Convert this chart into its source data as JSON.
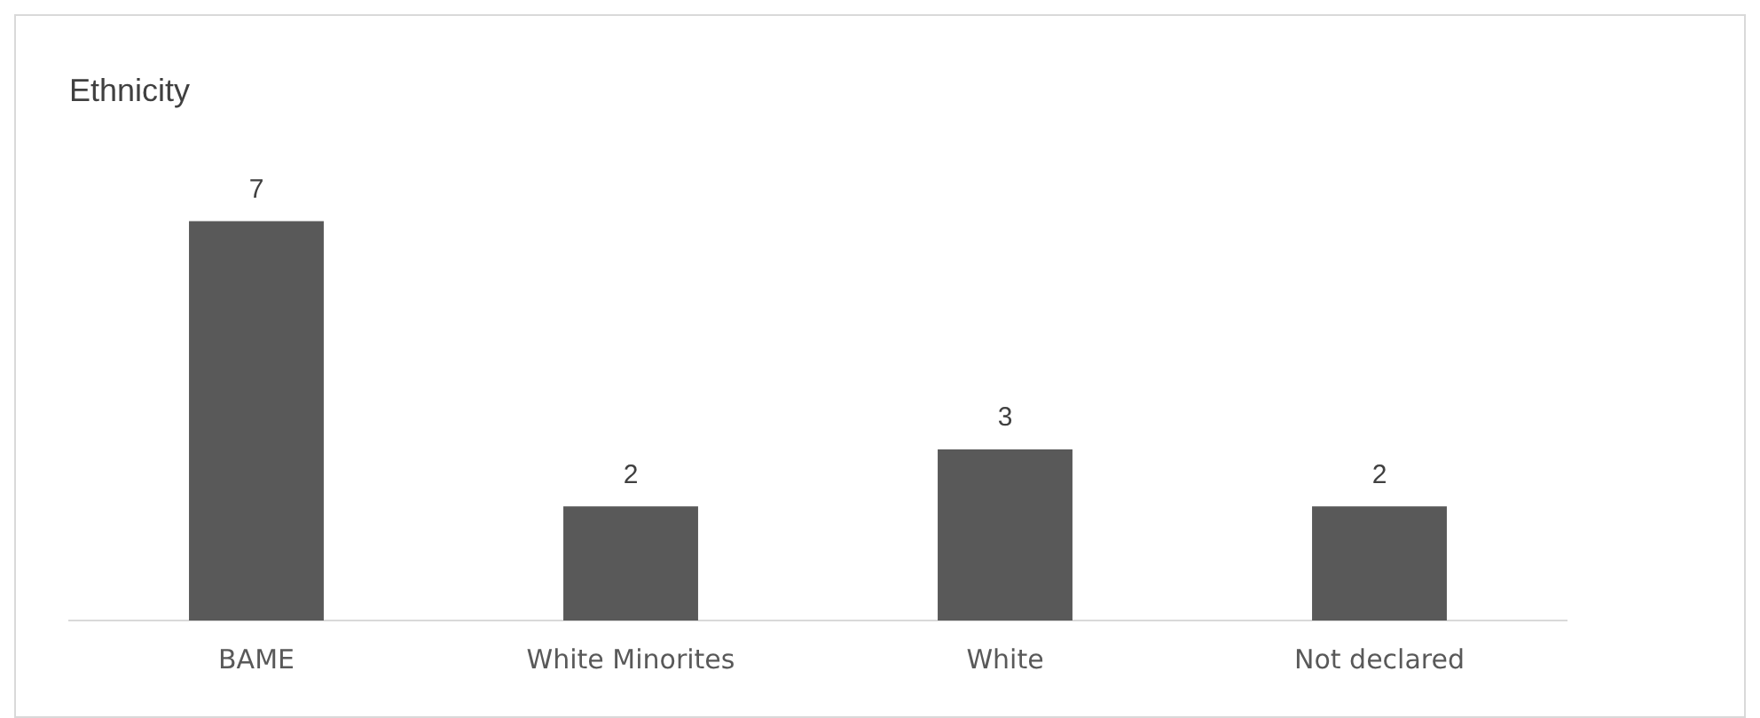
{
  "chart_data": {
    "type": "bar",
    "title": "Ethnicity",
    "categories": [
      "BAME",
      "White Minorites",
      "White",
      "Not declared"
    ],
    "values": [
      7,
      2,
      3,
      2
    ],
    "color": "#595959",
    "data_labels": true,
    "tick_labels": "x",
    "grid": false,
    "legend": false
  }
}
